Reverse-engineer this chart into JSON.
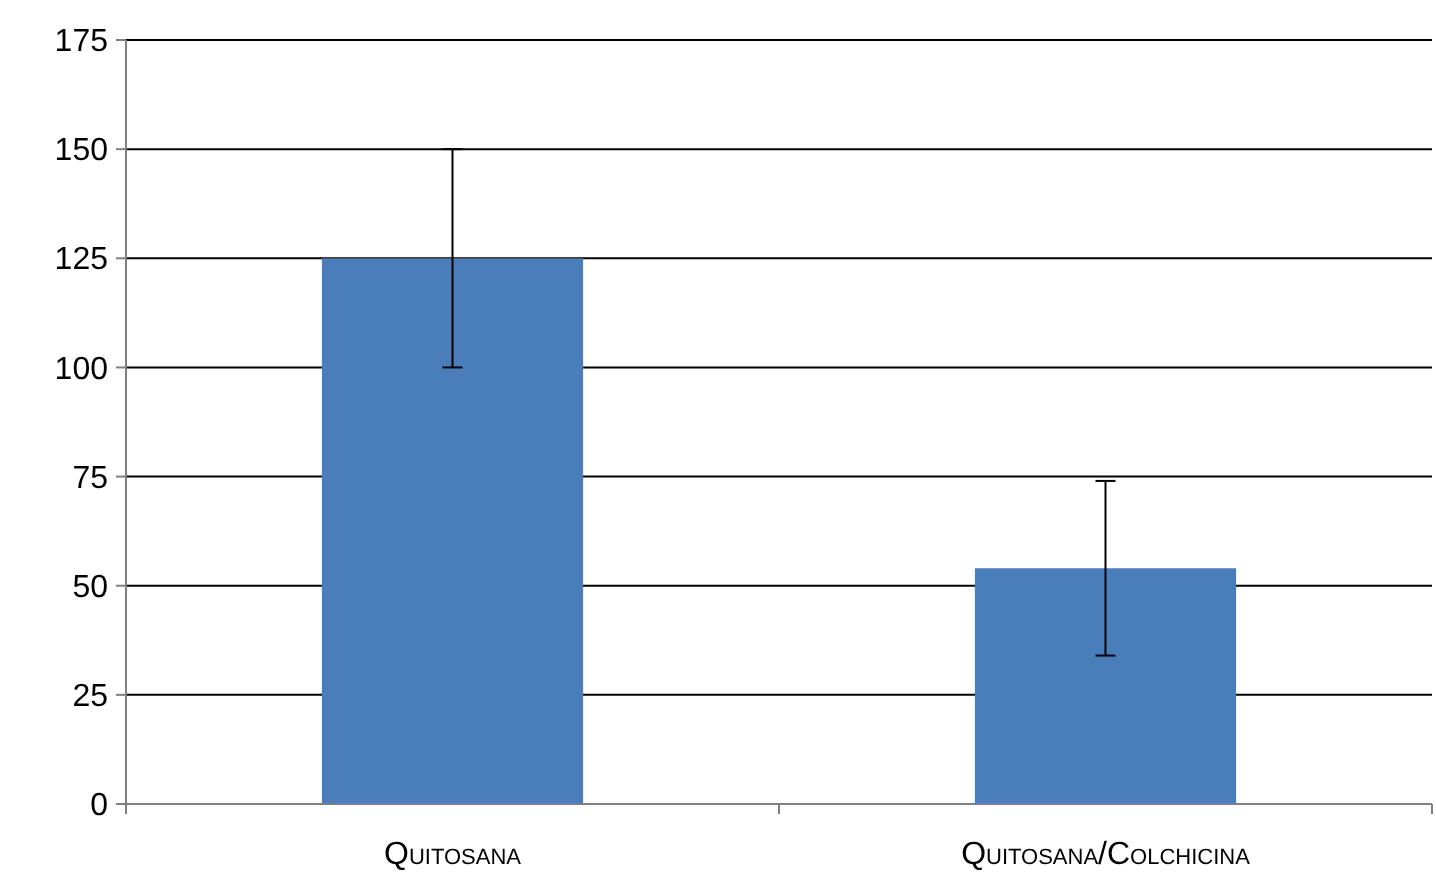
{
  "chart_data": {
    "type": "bar",
    "categories": [
      "Quitosana",
      "Quitosana/Colchicina"
    ],
    "values": [
      125,
      54
    ],
    "errors": [
      25,
      20
    ],
    "color": "#4a7ebb",
    "ylim": [
      0,
      175
    ],
    "yticks": [
      0,
      25,
      50,
      75,
      100,
      125,
      150,
      175
    ],
    "grid": "y"
  }
}
